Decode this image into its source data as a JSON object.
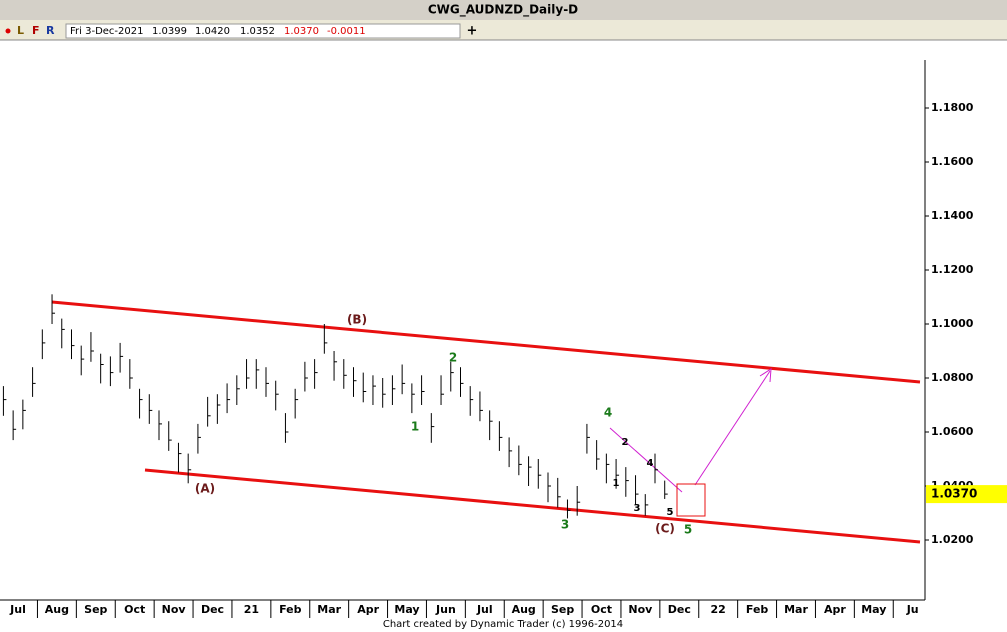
{
  "chart_data": {
    "type": "ohlc",
    "title": "CWG_AUDNZD_Daily-D",
    "toolbar": [
      "L",
      "F",
      "R"
    ],
    "info": {
      "date": "Fri 3-Dec-2021",
      "open": "1.0399",
      "high": "1.0420",
      "low": "1.0352",
      "close": "1.0370",
      "change": "-0.0011"
    },
    "xticks": [
      "Jul",
      "Aug",
      "Sep",
      "Oct",
      "Nov",
      "Dec",
      "21",
      "Feb",
      "Mar",
      "Apr",
      "May",
      "Jun",
      "Jul",
      "Aug",
      "Sep",
      "Oct",
      "Nov",
      "Dec",
      "22",
      "Feb",
      "Mar",
      "Apr",
      "May",
      "Ju"
    ],
    "close": [
      1.072,
      1.061,
      1.068,
      1.078,
      1.093,
      1.104,
      1.098,
      1.092,
      1.087,
      1.09,
      1.085,
      1.082,
      1.088,
      1.08,
      1.072,
      1.068,
      1.063,
      1.057,
      1.052,
      1.046,
      1.058,
      1.066,
      1.07,
      1.072,
      1.076,
      1.08,
      1.083,
      1.078,
      1.074,
      1.06,
      1.072,
      1.08,
      1.082,
      1.093,
      1.086,
      1.081,
      1.079,
      1.075,
      1.077,
      1.074,
      1.076,
      1.078,
      1.074,
      1.075,
      1.062,
      1.074,
      1.082,
      1.078,
      1.072,
      1.068,
      1.064,
      1.058,
      1.053,
      1.048,
      1.047,
      1.044,
      1.04,
      1.036,
      1.031,
      1.034,
      1.058,
      1.05,
      1.048,
      1.044,
      1.042,
      1.037,
      1.033,
      1.046,
      1.037
    ],
    "high": [
      1.077,
      1.068,
      1.072,
      1.084,
      1.098,
      1.111,
      1.102,
      1.098,
      1.092,
      1.097,
      1.089,
      1.088,
      1.093,
      1.087,
      1.076,
      1.074,
      1.068,
      1.064,
      1.056,
      1.052,
      1.063,
      1.073,
      1.074,
      1.078,
      1.081,
      1.087,
      1.087,
      1.084,
      1.079,
      1.067,
      1.076,
      1.086,
      1.087,
      1.1,
      1.09,
      1.087,
      1.084,
      1.082,
      1.081,
      1.08,
      1.081,
      1.085,
      1.078,
      1.081,
      1.067,
      1.081,
      1.086,
      1.084,
      1.077,
      1.075,
      1.068,
      1.064,
      1.058,
      1.055,
      1.051,
      1.05,
      1.045,
      1.043,
      1.035,
      1.04,
      1.063,
      1.057,
      1.052,
      1.05,
      1.047,
      1.044,
      1.037,
      1.052,
      1.042
    ],
    "low": [
      1.066,
      1.057,
      1.061,
      1.073,
      1.087,
      1.1,
      1.091,
      1.087,
      1.081,
      1.086,
      1.078,
      1.077,
      1.082,
      1.076,
      1.065,
      1.063,
      1.057,
      1.053,
      1.045,
      1.041,
      1.052,
      1.062,
      1.063,
      1.067,
      1.07,
      1.076,
      1.076,
      1.073,
      1.068,
      1.056,
      1.065,
      1.075,
      1.076,
      1.089,
      1.079,
      1.076,
      1.073,
      1.071,
      1.07,
      1.069,
      1.07,
      1.074,
      1.067,
      1.07,
      1.056,
      1.07,
      1.075,
      1.073,
      1.066,
      1.064,
      1.057,
      1.053,
      1.047,
      1.044,
      1.04,
      1.039,
      1.034,
      1.032,
      1.028,
      1.029,
      1.052,
      1.046,
      1.041,
      1.039,
      1.036,
      1.033,
      1.029,
      1.041,
      1.0352
    ],
    "ylim": [
      1.0,
      1.2
    ],
    "yticks": [
      {
        "value": 1.02,
        "label": "1.0200"
      },
      {
        "value": 1.04,
        "label": "1.0400"
      },
      {
        "value": 1.06,
        "label": "1.0600"
      },
      {
        "value": 1.08,
        "label": "1.0800"
      },
      {
        "value": 1.1,
        "label": "1.1000"
      },
      {
        "value": 1.12,
        "label": "1.1200"
      },
      {
        "value": 1.14,
        "label": "1.1400"
      },
      {
        "value": 1.16,
        "label": "1.1600"
      },
      {
        "value": 1.18,
        "label": "1.1800"
      }
    ],
    "last_price": {
      "value": 1.037,
      "label": "1.0370"
    },
    "color": "#000000",
    "annotations": [
      "(A)",
      "(B)",
      "(C)",
      "1",
      "2",
      "3",
      "4",
      "5",
      "1",
      "2",
      "3",
      "4",
      "5"
    ],
    "footer": "Chart created by Dynamic Trader  (c) 1996-2014"
  }
}
